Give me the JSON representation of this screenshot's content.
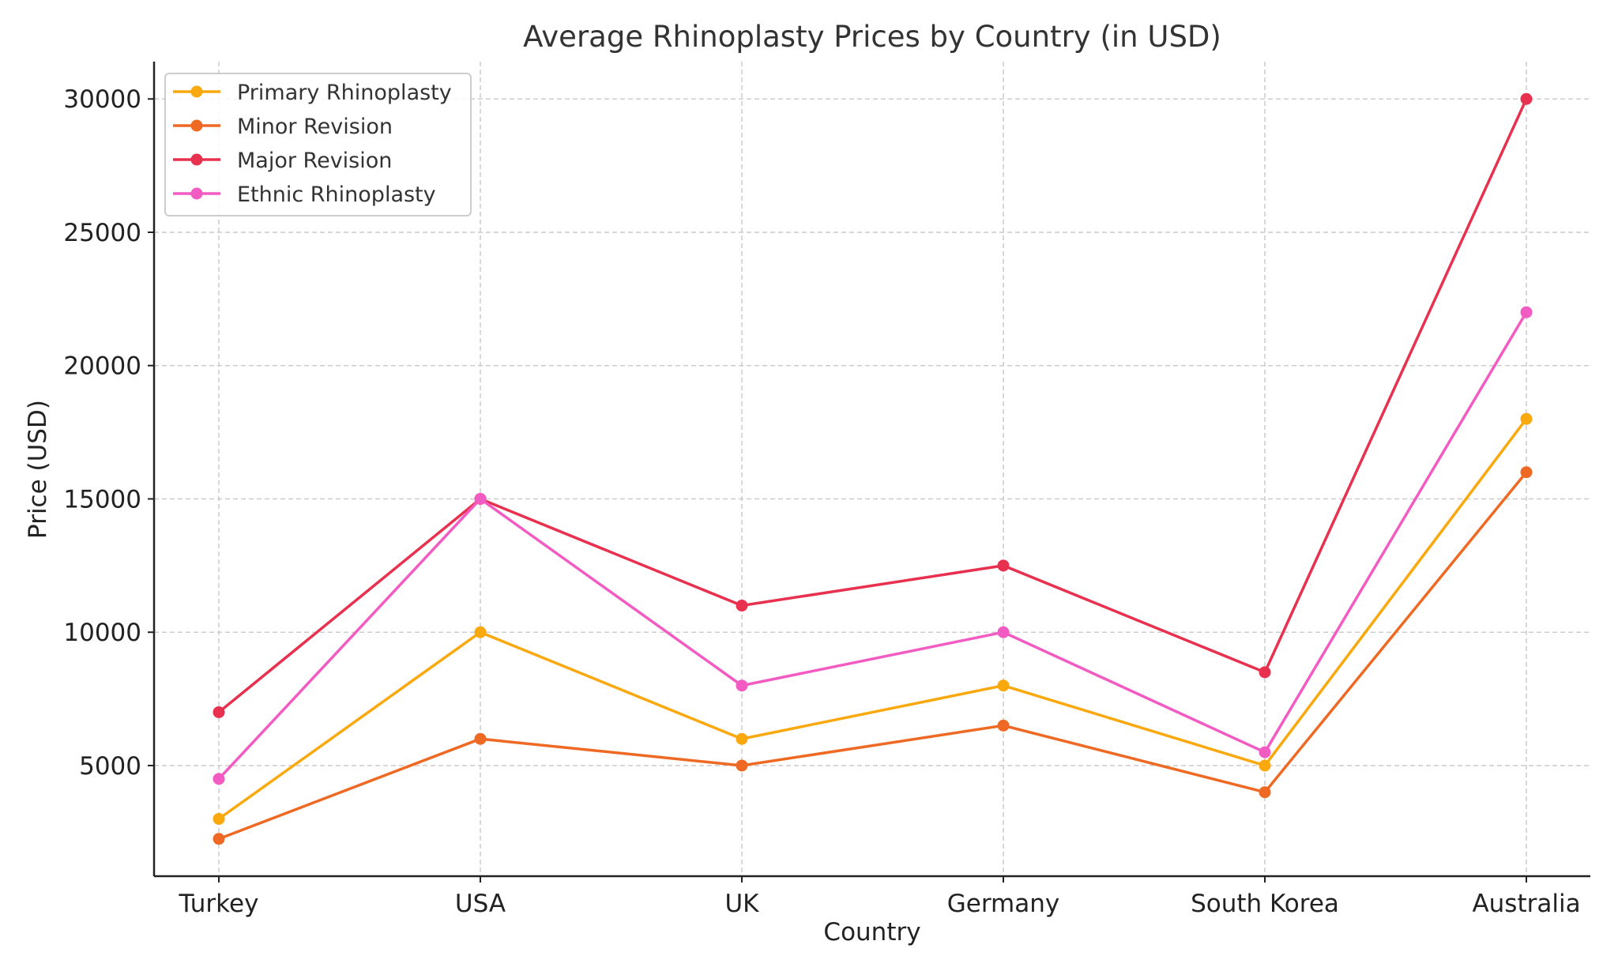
{
  "chart_data": {
    "type": "line",
    "title": "Average Rhinoplasty Prices by Country (in USD)",
    "xlabel": "Country",
    "ylabel": "Price (USD)",
    "categories": [
      "Turkey",
      "USA",
      "UK",
      "Germany",
      "South Korea",
      "Australia"
    ],
    "yticks": [
      5000,
      10000,
      15000,
      20000,
      25000,
      30000
    ],
    "ylim": [
      850,
      31400
    ],
    "grid": true,
    "legend_position": "top-left",
    "series": [
      {
        "name": "Primary Rhinoplasty",
        "color": "#F9A80E",
        "values": [
          3000,
          10000,
          6000,
          8000,
          5000,
          18000
        ]
      },
      {
        "name": "Minor Revision",
        "color": "#EE6A24",
        "values": [
          2250,
          6000,
          5000,
          6500,
          4000,
          16000
        ]
      },
      {
        "name": "Major Revision",
        "color": "#E8304F",
        "values": [
          7000,
          15000,
          11000,
          12500,
          8500,
          30000
        ]
      },
      {
        "name": "Ethnic Rhinoplasty",
        "color": "#F25BC2",
        "values": [
          4500,
          15000,
          8000,
          10000,
          5500,
          22000
        ]
      }
    ]
  }
}
